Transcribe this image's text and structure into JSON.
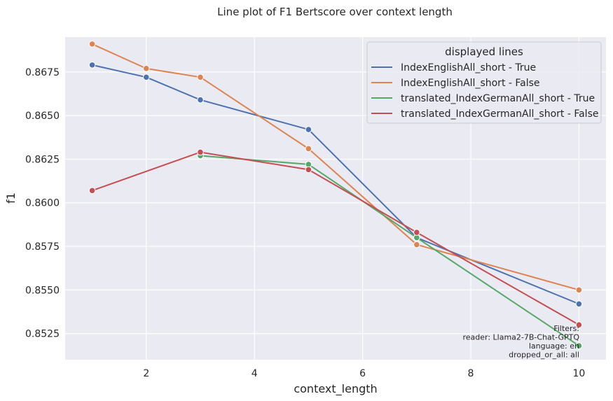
{
  "chart_data": {
    "type": "line",
    "title": "Line plot of F1 Bertscore over context length",
    "xlabel": "context_length",
    "ylabel": "f1",
    "xlim": [
      0.5,
      10.5
    ],
    "ylim": [
      0.851,
      0.8695
    ],
    "xticks": [
      2,
      4,
      6,
      8,
      10
    ],
    "yticks": [
      0.8525,
      0.855,
      0.8575,
      0.86,
      0.8625,
      0.865,
      0.8675
    ],
    "ytick_labels": [
      "0.8525",
      "0.8550",
      "0.8575",
      "0.8600",
      "0.8625",
      "0.8650",
      "0.8675"
    ],
    "grid": true,
    "legend": {
      "title": "displayed lines",
      "position": "top-right"
    },
    "series": [
      {
        "name": "IndexEnglishAll_short - True",
        "color": "#4c72b0",
        "x": [
          1,
          2,
          3,
          5,
          7,
          10
        ],
        "y": [
          0.8679,
          0.8672,
          0.8659,
          0.8642,
          0.858,
          0.8542
        ]
      },
      {
        "name": "IndexEnglishAll_short - False",
        "color": "#dd8452",
        "x": [
          1,
          2,
          3,
          5,
          7,
          10
        ],
        "y": [
          0.8691,
          0.8677,
          0.8672,
          0.8631,
          0.8576,
          0.855
        ]
      },
      {
        "name": "translated_IndexGermanAll_short - True",
        "color": "#55a868",
        "x": [
          3,
          5,
          7,
          10
        ],
        "y": [
          0.8627,
          0.8622,
          0.858,
          0.8518
        ]
      },
      {
        "name": "translated_IndexGermanAll_short - False",
        "color": "#c44e52",
        "x": [
          1,
          3,
          5,
          7,
          10
        ],
        "y": [
          0.8607,
          0.8629,
          0.8619,
          0.8583,
          0.853
        ]
      }
    ],
    "annotation": [
      "Filters:",
      "reader: Llama2-7B-Chat-GPTQ",
      "language: en",
      "dropped_or_all: all"
    ]
  }
}
